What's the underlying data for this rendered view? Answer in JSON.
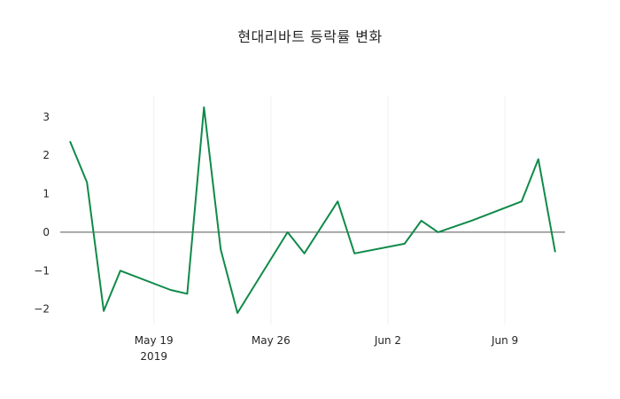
{
  "title": "현대리바트 등락률 변화",
  "colors": {
    "line": "#108a4a",
    "zero_line": "#555555",
    "grid": "#f0f0f0",
    "tick_label": "#262626",
    "background": "#ffffff"
  },
  "chart_data": {
    "type": "line",
    "title": "현대리바트 등락률 변화",
    "xlabel": "",
    "ylabel": "",
    "ylim": [
      -2.4,
      3.55
    ],
    "grid": "faint-vertical",
    "legend": "none",
    "zero_line": true,
    "y_ticks": [
      {
        "value": 3,
        "label": "3"
      },
      {
        "value": 2,
        "label": "2"
      },
      {
        "value": 1,
        "label": "1"
      },
      {
        "value": 0,
        "label": "0"
      },
      {
        "value": -1,
        "label": "−1"
      },
      {
        "value": -2,
        "label": "−2"
      }
    ],
    "x_ticks": [
      {
        "date": "2019-05-19",
        "label": "May 19",
        "sublabel": "2019"
      },
      {
        "date": "2019-05-26",
        "label": "May 26",
        "sublabel": ""
      },
      {
        "date": "2019-06-02",
        "label": "Jun 2",
        "sublabel": ""
      },
      {
        "date": "2019-06-09",
        "label": "Jun 9",
        "sublabel": ""
      }
    ],
    "series": [
      {
        "name": "현대리바트 등락률",
        "color": "#108a4a",
        "points": [
          {
            "date": "2019-05-14",
            "value": 2.35
          },
          {
            "date": "2019-05-15",
            "value": 1.3
          },
          {
            "date": "2019-05-16",
            "value": -2.05
          },
          {
            "date": "2019-05-17",
            "value": -1.0
          },
          {
            "date": "2019-05-20",
            "value": -1.5
          },
          {
            "date": "2019-05-21",
            "value": -1.6
          },
          {
            "date": "2019-05-22",
            "value": 3.25
          },
          {
            "date": "2019-05-23",
            "value": -0.45
          },
          {
            "date": "2019-05-24",
            "value": -2.1
          },
          {
            "date": "2019-05-27",
            "value": 0.0
          },
          {
            "date": "2019-05-28",
            "value": -0.55
          },
          {
            "date": "2019-05-30",
            "value": 0.8
          },
          {
            "date": "2019-05-31",
            "value": -0.55
          },
          {
            "date": "2019-06-03",
            "value": -0.3
          },
          {
            "date": "2019-06-04",
            "value": 0.3
          },
          {
            "date": "2019-06-05",
            "value": 0.0
          },
          {
            "date": "2019-06-07",
            "value": 0.3
          },
          {
            "date": "2019-06-10",
            "value": 0.8
          },
          {
            "date": "2019-06-11",
            "value": 1.9
          },
          {
            "date": "2019-06-12",
            "value": -0.5
          }
        ]
      }
    ]
  }
}
